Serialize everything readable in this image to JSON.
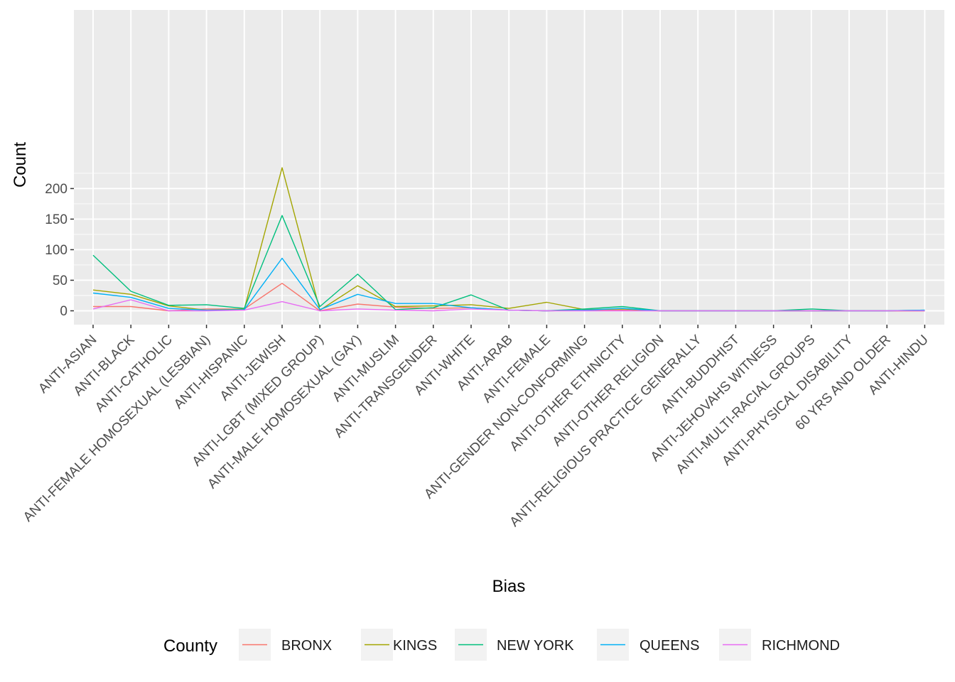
{
  "chart_data": {
    "type": "line",
    "title": "",
    "xlabel": "Bias",
    "ylabel": "Count",
    "ylim": [
      -12,
      240
    ],
    "yticks": [
      0,
      50,
      100,
      150,
      200
    ],
    "grid": true,
    "legend_title": "County",
    "legend_position": "bottom",
    "categories": [
      "ANTI-ASIAN",
      "ANTI-BLACK",
      "ANTI-CATHOLIC",
      "ANTI-FEMALE HOMOSEXUAL (LESBIAN)",
      "ANTI-HISPANIC",
      "ANTI-JEWISH",
      "ANTI-LGBT (MIXED GROUP)",
      "ANTI-MALE HOMOSEXUAL (GAY)",
      "ANTI-MUSLIM",
      "ANTI-TRANSGENDER",
      "ANTI-WHITE",
      "ANTI-ARAB",
      "ANTI-FEMALE",
      "ANTI-GENDER NON-CONFORMING",
      "ANTI-OTHER ETHNICITY",
      "ANTI-OTHER RELIGION",
      "ANTI-RELIGIOUS PRACTICE GENERALLY",
      "ANTI-BUDDHIST",
      "ANTI-JEHOVAHS WITNESS",
      "ANTI-MULTI-RACIAL GROUPS",
      "ANTI-PHYSICAL DISABILITY",
      "60 YRS AND OLDER",
      "ANTI-HINDU"
    ],
    "series": [
      {
        "name": "BRONX",
        "color": "#F8766D",
        "values": [
          7,
          7,
          0,
          3,
          3,
          45,
          0,
          11,
          6,
          4,
          5,
          1,
          0,
          1,
          1,
          0,
          0,
          0,
          0,
          0,
          0,
          0,
          0
        ]
      },
      {
        "name": "KINGS",
        "color": "#A3A500",
        "values": [
          34,
          27,
          8,
          1,
          3,
          234,
          1,
          41,
          7,
          8,
          10,
          4,
          14,
          2,
          3,
          0,
          0,
          0,
          0,
          0,
          0,
          0,
          0
        ]
      },
      {
        "name": "NEW YORK",
        "color": "#00BF7D",
        "values": [
          91,
          32,
          9,
          10,
          4,
          156,
          7,
          60,
          2,
          5,
          26,
          1,
          0,
          3,
          7,
          0,
          0,
          0,
          0,
          3,
          0,
          0,
          1
        ]
      },
      {
        "name": "QUEENS",
        "color": "#00B0F6",
        "values": [
          29,
          22,
          4,
          1,
          2,
          86,
          2,
          27,
          12,
          12,
          5,
          1,
          0,
          1,
          4,
          0,
          0,
          0,
          0,
          0,
          0,
          0,
          1
        ]
      },
      {
        "name": "RICHMOND",
        "color": "#E76BF3",
        "values": [
          3,
          18,
          0,
          0,
          1,
          15,
          0,
          3,
          1,
          0,
          3,
          1,
          0,
          0,
          0,
          0,
          0,
          0,
          0,
          0,
          0,
          0,
          0
        ]
      }
    ]
  }
}
